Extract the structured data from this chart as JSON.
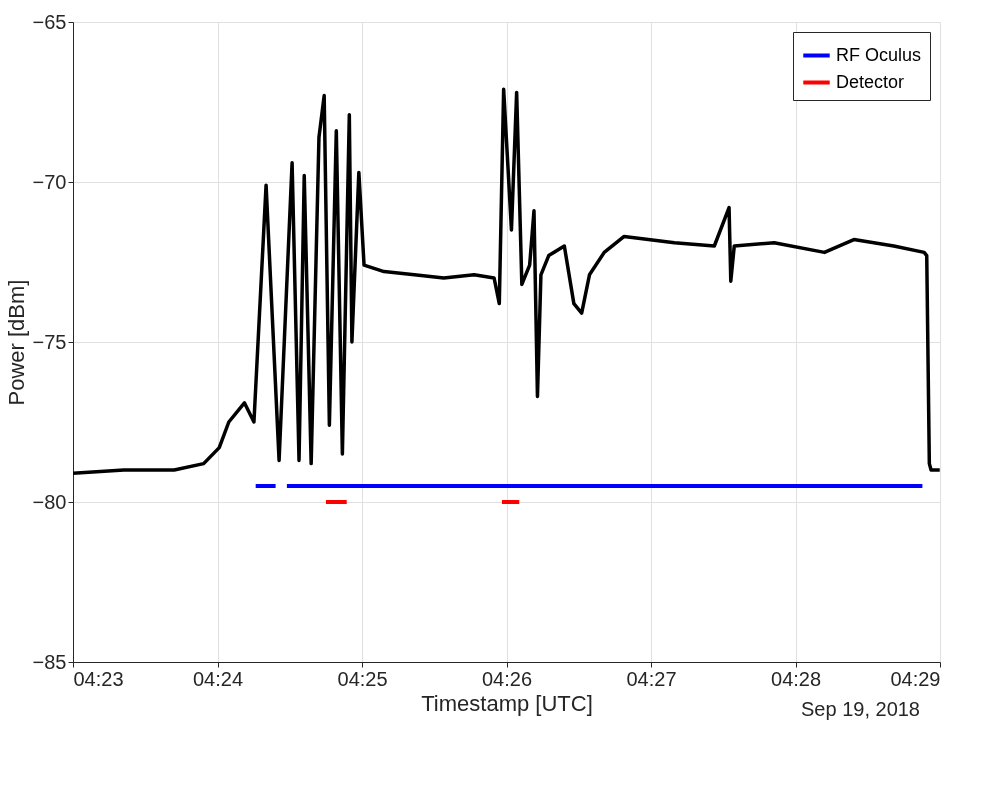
{
  "chart_data": {
    "type": "line",
    "xlabel": "Timestamp [UTC]",
    "ylabel": "Power [dBm]",
    "xlim": [
      4.38333,
      4.48333
    ],
    "xticks": [
      {
        "value": 4.38333,
        "label": "04:23"
      },
      {
        "value": 4.4,
        "label": "04:24"
      },
      {
        "value": 4.41667,
        "label": "04:25"
      },
      {
        "value": 4.43333,
        "label": "04:26"
      },
      {
        "value": 4.45,
        "label": "04:27"
      },
      {
        "value": 4.46667,
        "label": "04:28"
      },
      {
        "value": 4.48333,
        "label": "04:29"
      }
    ],
    "ylim": [
      -85,
      -65
    ],
    "yticks": [
      -85,
      -80,
      -75,
      -70,
      -65
    ],
    "grid": true,
    "legend": "top right",
    "annotations": [
      "Sep 19, 2018"
    ],
    "series": [
      {
        "color": "#000000",
        "x": [
          4.38333,
          4.3892,
          4.395,
          4.3984,
          4.4002,
          4.4013,
          4.4031,
          4.4042,
          4.4056,
          4.4071,
          4.4086,
          4.4094,
          4.41,
          4.4108,
          4.4117,
          4.4123,
          4.4129,
          4.4137,
          4.4144,
          4.4152,
          4.4155,
          4.4163,
          4.4169,
          4.4192,
          4.4227,
          4.4261,
          4.4296,
          4.4319,
          4.4325,
          4.433,
          4.4339,
          4.4345,
          4.4351,
          4.436,
          4.4365,
          4.4369,
          4.4373,
          4.4382,
          4.44,
          4.4411,
          4.442,
          4.4429,
          4.4446,
          4.4469,
          4.4527,
          4.4573,
          4.459,
          4.4592,
          4.4596,
          4.4642,
          4.47,
          4.4734,
          4.478,
          4.4815,
          4.4818,
          4.4821,
          4.4823,
          4.4833
        ],
        "values": [
          -79.1,
          -79.0,
          -79.0,
          -78.8,
          -78.3,
          -77.5,
          -76.9,
          -77.5,
          -70.1,
          -78.7,
          -69.4,
          -78.7,
          -69.8,
          -78.8,
          -68.6,
          -67.3,
          -77.6,
          -68.4,
          -78.5,
          -67.9,
          -75.0,
          -69.7,
          -72.6,
          -72.8,
          -72.9,
          -73.0,
          -72.9,
          -73.0,
          -73.8,
          -67.1,
          -71.5,
          -67.2,
          -73.2,
          -72.6,
          -70.9,
          -76.7,
          -72.9,
          -72.3,
          -72.0,
          -73.8,
          -74.1,
          -72.9,
          -72.2,
          -71.7,
          -71.9,
          -72.0,
          -70.8,
          -73.1,
          -72.0,
          -71.9,
          -72.2,
          -71.8,
          -72.0,
          -72.2,
          -72.3,
          -78.8,
          -79.0,
          -79.0
        ]
      },
      {
        "name": "RF Oculus",
        "color": "#0000ff",
        "x": [
          4.4044,
          4.4067,
          4.407,
          4.408,
          4.4813
        ],
        "values": [
          -79.5,
          -79.5,
          null,
          -79.5,
          -79.5
        ]
      },
      {
        "name": "Detector",
        "color": "#ff0000",
        "x": [
          4.4125,
          4.4149,
          4.415,
          4.4328,
          4.4348
        ],
        "values": [
          -80,
          -80,
          null,
          -80,
          -80
        ]
      }
    ]
  }
}
